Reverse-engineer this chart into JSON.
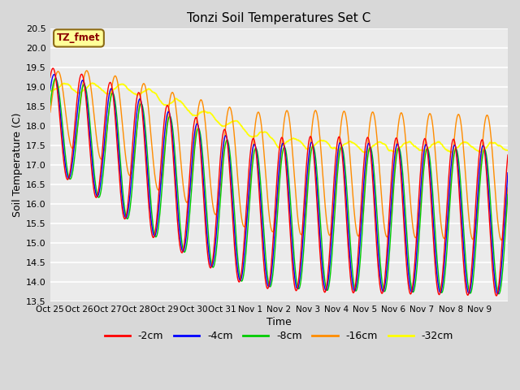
{
  "title": "Tonzi Soil Temperatures Set C",
  "xlabel": "Time",
  "ylabel": "Soil Temperature (C)",
  "ylim": [
    13.5,
    20.5
  ],
  "series_colors": {
    "-2cm": "#ff0000",
    "-4cm": "#0000ff",
    "-8cm": "#00cc00",
    "-16cm": "#ff8c00",
    "-32cm": "#ffff00"
  },
  "x_tick_labels": [
    "Oct 25",
    "Oct 26",
    "Oct 27",
    "Oct 28",
    "Oct 29",
    "Oct 30",
    "Oct 31",
    "Nov 1",
    "Nov 2",
    "Nov 3",
    "Nov 4",
    "Nov 5",
    "Nov 6",
    "Nov 7",
    "Nov 8",
    "Nov 9"
  ],
  "annotation_text": "TZ_fmet",
  "annotation_bg": "#ffff99",
  "annotation_border": "#8b6914",
  "fig_bg_color": "#d8d8d8",
  "plot_bg_color": "#ebebeb",
  "grid_color": "#ffffff",
  "linewidth": 1.0,
  "yticks": [
    13.5,
    14.0,
    14.5,
    15.0,
    15.5,
    16.0,
    16.5,
    17.0,
    17.5,
    18.0,
    18.5,
    19.0,
    19.5,
    20.0,
    20.5
  ]
}
